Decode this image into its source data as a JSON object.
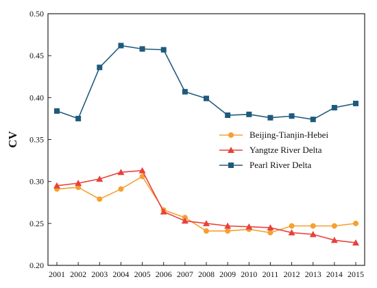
{
  "chart_data": {
    "type": "line",
    "title": "",
    "xlabel": "",
    "ylabel": "CV",
    "ylim": [
      0.2,
      0.5
    ],
    "yticks": [
      "0.20",
      "0.25",
      "0.30",
      "0.35",
      "0.40",
      "0.45",
      "0.50"
    ],
    "x": [
      "2001",
      "2002",
      "2003",
      "2004",
      "2005",
      "2006",
      "2007",
      "2008",
      "2009",
      "2010",
      "2011",
      "2012",
      "2013",
      "2014",
      "2015"
    ],
    "grid": false,
    "legend_position": "right",
    "series": [
      {
        "name": "Beijing-Tianjin-Hebei",
        "color": "#f5a031",
        "marker": "circle",
        "values": [
          0.291,
          0.293,
          0.279,
          0.291,
          0.306,
          0.266,
          0.257,
          0.241,
          0.241,
          0.243,
          0.239,
          0.247,
          0.247,
          0.247,
          0.25
        ]
      },
      {
        "name": "Yangtze River Delta",
        "color": "#e8413c",
        "marker": "triangle",
        "values": [
          0.295,
          0.298,
          0.303,
          0.311,
          0.313,
          0.264,
          0.253,
          0.25,
          0.247,
          0.246,
          0.245,
          0.239,
          0.237,
          0.23,
          0.227
        ]
      },
      {
        "name": "Pearl River Delta",
        "color": "#1f5a7d",
        "marker": "square",
        "values": [
          0.384,
          0.375,
          0.436,
          0.462,
          0.458,
          0.457,
          0.407,
          0.399,
          0.379,
          0.38,
          0.376,
          0.378,
          0.374,
          0.388,
          0.393
        ]
      }
    ]
  }
}
